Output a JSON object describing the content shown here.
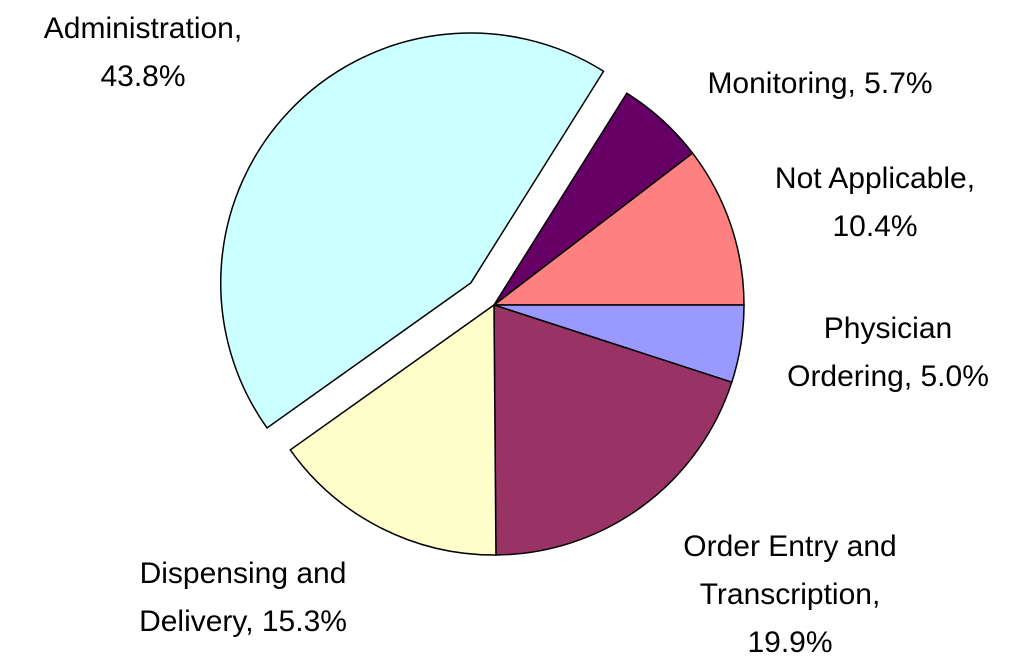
{
  "chart_data": {
    "type": "pie",
    "values": [
      5.7,
      10.4,
      5.0,
      19.9,
      15.3,
      43.8
    ],
    "value_labels": [
      "Monitoring, 5.7%",
      "Not Applicable, 10.4%",
      "Physician Ordering, 5.0%",
      "Order Entry and Transcription, 19.9%",
      "Dispensing and Delivery, 15.3%",
      "Administration, 43.8%"
    ],
    "colors": [
      "#660066",
      "#ff8080",
      "#9999ff",
      "#993366",
      "#ffffcc",
      "#ccffff"
    ],
    "exploded": [
      false,
      false,
      false,
      false,
      false,
      true
    ]
  }
}
